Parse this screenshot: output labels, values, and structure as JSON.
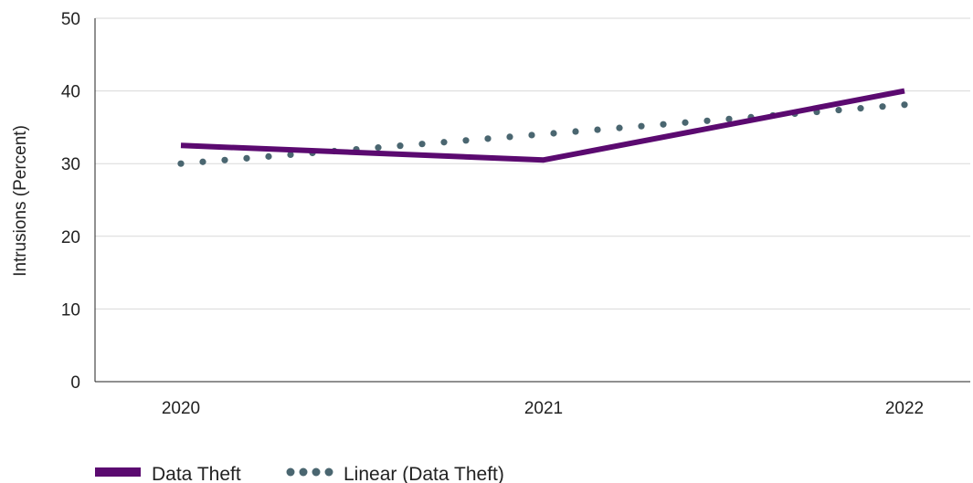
{
  "chart_data": {
    "type": "line",
    "title": "",
    "xlabel": "",
    "ylabel": "Intrusions (Percent)",
    "x": [
      "2020",
      "2021",
      "2022"
    ],
    "ylim": [
      0,
      50
    ],
    "yticks": [
      0,
      10,
      20,
      30,
      40,
      50
    ],
    "grid": true,
    "legend_position": "bottom-left",
    "series": [
      {
        "name": "Data Theft",
        "values": [
          32.5,
          30.5,
          40.0
        ],
        "color": "#5b0a70",
        "style": "solid"
      },
      {
        "name": "Linear (Data Theft)",
        "values": [
          30.0,
          34.1,
          38.1
        ],
        "color": "#4a6670",
        "style": "dotted"
      }
    ]
  }
}
